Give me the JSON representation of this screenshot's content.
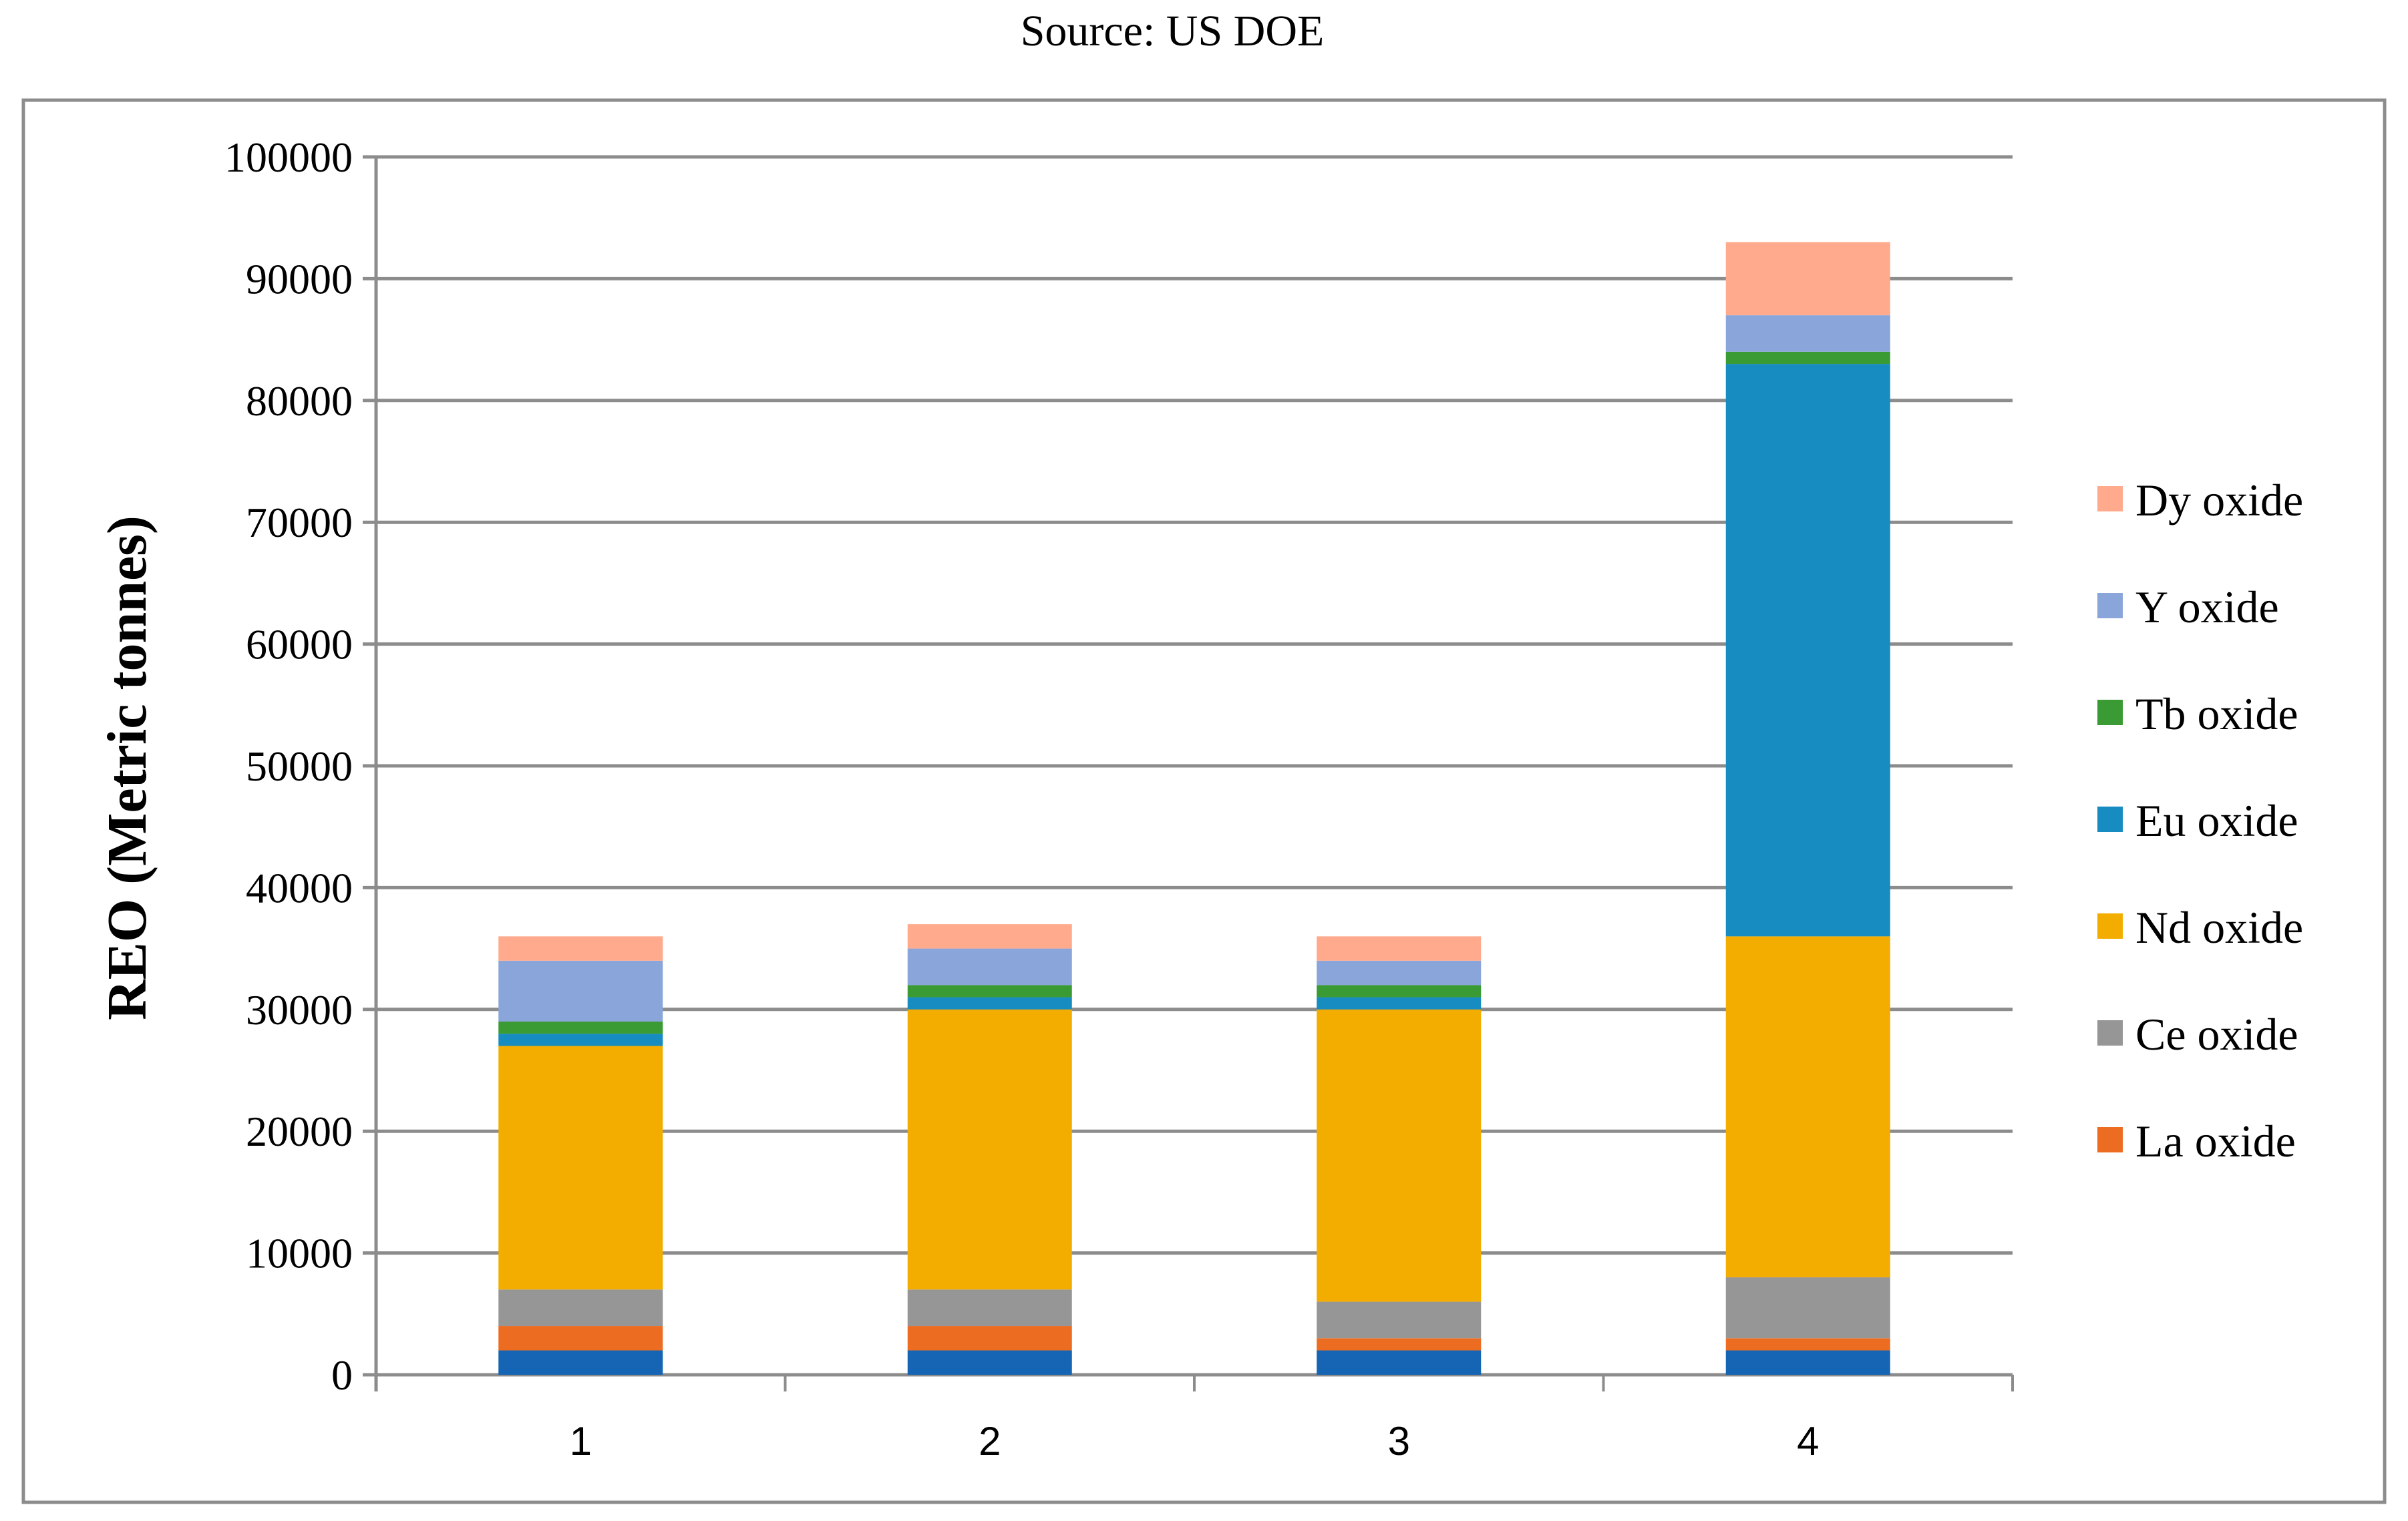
{
  "chart_data": {
    "type": "bar",
    "stacked": true,
    "title": "Source: US DOE",
    "xlabel": "",
    "ylabel": "REO (Metric tonnes)",
    "ylim": [
      0,
      100000
    ],
    "yticks": [
      0,
      10000,
      20000,
      30000,
      40000,
      50000,
      60000,
      70000,
      80000,
      90000,
      100000
    ],
    "categories": [
      "1",
      "2",
      "3",
      "4"
    ],
    "grid": true,
    "legend_position": "right",
    "series": [
      {
        "name": "",
        "color": "#1565b4",
        "values": [
          2000,
          2000,
          2000,
          2000
        ]
      },
      {
        "name": "La oxide",
        "color": "#ec6c21",
        "values": [
          2000,
          2000,
          1000,
          1000
        ]
      },
      {
        "name": "Ce oxide",
        "color": "#969696",
        "values": [
          3000,
          3000,
          3000,
          5000
        ]
      },
      {
        "name": "Nd oxide",
        "color": "#f3ad00",
        "values": [
          20000,
          23000,
          24000,
          28000
        ]
      },
      {
        "name": "Eu oxide",
        "color": "#178cc0",
        "values": [
          1000,
          1000,
          1000,
          47000
        ]
      },
      {
        "name": " Tb oxide",
        "color": "#3a9a33",
        "values": [
          1000,
          1000,
          1000,
          1000
        ]
      },
      {
        "name": "Y oxide",
        "color": "#89a5d9",
        "values": [
          5000,
          3000,
          2000,
          3000
        ]
      },
      {
        "name": "Dy oxide",
        "color": "#ffaa8c",
        "values": [
          2000,
          2000,
          2000,
          6000
        ]
      }
    ]
  }
}
